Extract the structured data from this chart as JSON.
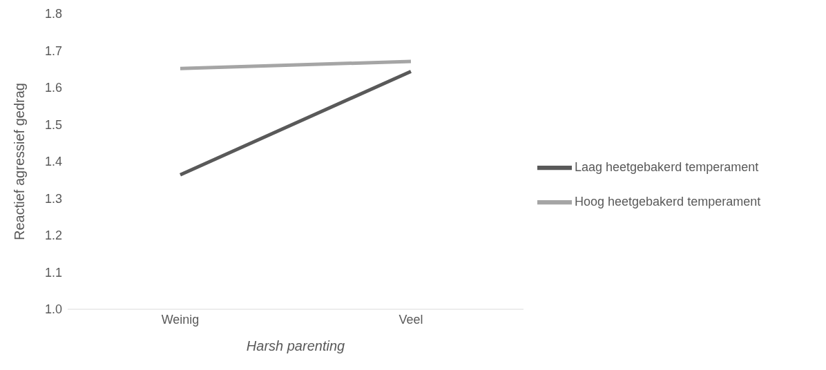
{
  "chart_data": {
    "type": "line",
    "xlabel": "Harsh parenting",
    "ylabel": "Reactief agressief gedrag",
    "categories": [
      "Weinig",
      "Veel"
    ],
    "series": [
      {
        "name": "Laag heetgebakerd temperament",
        "color": "#595959",
        "values": [
          1.364,
          1.644
        ]
      },
      {
        "name": "Hoog heetgebakerd temperament",
        "color": "#a5a5a5",
        "values": [
          1.652,
          1.671
        ]
      }
    ],
    "ylim": [
      1.0,
      1.8
    ],
    "yticks": [
      {
        "value": 1.0,
        "label": "1.0"
      },
      {
        "value": 1.1,
        "label": "1.1"
      },
      {
        "value": 1.2,
        "label": "1.2"
      },
      {
        "value": 1.3,
        "label": "1.3"
      },
      {
        "value": 1.4,
        "label": "1.4"
      },
      {
        "value": 1.5,
        "label": "1.5"
      },
      {
        "value": 1.6,
        "label": "1.6"
      },
      {
        "value": 1.7,
        "label": "1.7"
      },
      {
        "value": 1.8,
        "label": "1.8"
      }
    ],
    "grid": false,
    "legend": "right",
    "marker": "none",
    "line_style": "solid"
  }
}
